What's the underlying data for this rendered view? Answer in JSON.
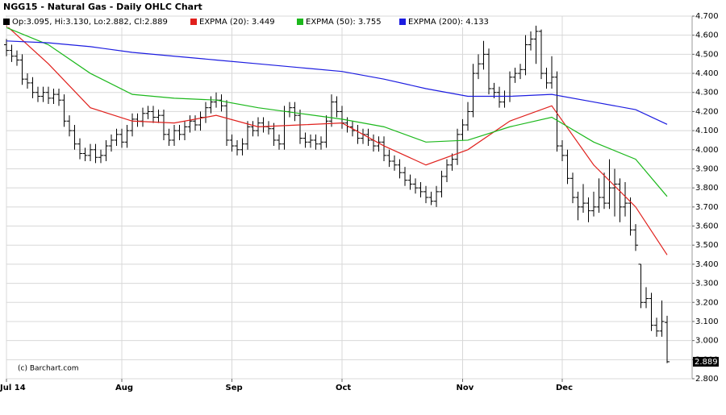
{
  "chart_data": {
    "type": "ohlc",
    "title": "NGG15 - Natural Gas - Daily OHLC Chart",
    "ohlc_label": "Op:3.095, Hi:3.130, Lo:2.882, Cl:2.889",
    "ohlc_color": "#000000",
    "source": "(c) Barchart.com",
    "categories": [
      "Jul 14",
      null,
      null,
      null,
      null,
      null,
      null,
      null,
      null,
      null,
      null,
      null,
      null,
      null,
      null,
      null,
      null,
      null,
      null,
      null,
      null,
      null,
      "Aug",
      null,
      null,
      null,
      null,
      null,
      null,
      null,
      null,
      null,
      null,
      null,
      null,
      null,
      null,
      null,
      null,
      null,
      null,
      null,
      null,
      "Sep",
      null,
      null,
      null,
      null,
      null,
      null,
      null,
      null,
      null,
      null,
      null,
      null,
      null,
      null,
      null,
      null,
      null,
      null,
      null,
      null,
      "Oct",
      null,
      null,
      null,
      null,
      null,
      null,
      null,
      null,
      null,
      null,
      null,
      null,
      null,
      null,
      null,
      null,
      null,
      null,
      null,
      null,
      null,
      null,
      "Nov",
      null,
      null,
      null,
      null,
      null,
      null,
      null,
      null,
      null,
      null,
      null,
      null,
      null,
      null,
      null,
      null,
      null,
      null,
      "Dec",
      null,
      null,
      null,
      null,
      null,
      null,
      null,
      null,
      null,
      null,
      null,
      null,
      null,
      null,
      null,
      null,
      null,
      null,
      null,
      null
    ],
    "open": [
      4.55,
      4.52,
      4.49,
      4.47,
      4.37,
      4.35,
      4.3,
      4.28,
      4.3,
      4.27,
      4.29,
      4.26,
      4.15,
      4.1,
      4.03,
      3.98,
      3.97,
      4.0,
      3.96,
      3.97,
      4.02,
      4.05,
      4.08,
      4.04,
      4.1,
      4.16,
      4.15,
      4.19,
      4.2,
      4.17,
      4.18,
      4.08,
      4.05,
      4.1,
      4.08,
      4.12,
      4.15,
      4.13,
      4.17,
      4.22,
      4.25,
      4.26,
      4.23,
      4.05,
      4.02,
      4.0,
      4.03,
      4.12,
      4.1,
      4.14,
      4.12,
      4.11,
      4.05,
      4.03,
      4.2,
      4.22,
      4.18,
      4.06,
      4.04,
      4.05,
      4.03,
      4.04,
      4.15,
      4.25,
      4.2,
      4.14,
      4.12,
      4.1,
      4.06,
      4.08,
      4.05,
      4.02,
      4.04,
      3.97,
      3.94,
      3.92,
      3.88,
      3.84,
      3.82,
      3.8,
      3.78,
      3.75,
      3.73,
      3.78,
      3.86,
      3.92,
      3.95,
      4.08,
      4.13,
      4.2,
      4.4,
      4.45,
      4.5,
      4.32,
      4.3,
      4.25,
      4.28,
      4.38,
      4.4,
      4.42,
      4.55,
      4.58,
      4.62,
      4.4,
      4.35,
      4.38,
      4.02,
      3.97,
      3.85,
      3.75,
      3.7,
      3.72,
      3.68,
      3.7,
      3.75,
      3.72,
      3.8,
      3.82,
      3.7,
      3.72,
      3.58,
      3.4,
      3.2,
      3.22,
      3.08,
      3.05,
      3.095
    ],
    "high": [
      4.58,
      4.55,
      4.52,
      4.5,
      4.4,
      4.38,
      4.33,
      4.33,
      4.33,
      4.32,
      4.32,
      4.29,
      4.18,
      4.13,
      4.06,
      4.01,
      4.03,
      4.03,
      4.0,
      4.05,
      4.08,
      4.11,
      4.11,
      4.13,
      4.19,
      4.19,
      4.22,
      4.23,
      4.23,
      4.21,
      4.21,
      4.11,
      4.13,
      4.13,
      4.15,
      4.18,
      4.18,
      4.2,
      4.25,
      4.28,
      4.3,
      4.29,
      4.26,
      4.08,
      4.05,
      4.06,
      4.15,
      4.15,
      4.17,
      4.17,
      4.15,
      4.14,
      4.08,
      4.23,
      4.25,
      4.25,
      4.21,
      4.09,
      4.08,
      4.08,
      4.07,
      4.18,
      4.29,
      4.28,
      4.23,
      4.17,
      4.15,
      4.13,
      4.11,
      4.11,
      4.08,
      4.07,
      4.07,
      4.0,
      3.97,
      3.95,
      3.91,
      3.87,
      3.85,
      3.83,
      3.81,
      3.78,
      3.81,
      3.89,
      3.95,
      3.98,
      4.11,
      4.16,
      4.25,
      4.45,
      4.5,
      4.57,
      4.53,
      4.35,
      4.33,
      4.31,
      4.41,
      4.43,
      4.45,
      4.6,
      4.62,
      4.65,
      4.63,
      4.43,
      4.49,
      4.41,
      4.05,
      4.0,
      3.88,
      3.78,
      3.82,
      3.75,
      3.78,
      3.85,
      3.88,
      3.95,
      3.9,
      3.85,
      3.83,
      3.75,
      3.61,
      3.4,
      3.28,
      3.25,
      3.12,
      3.21,
      3.13
    ],
    "low": [
      4.49,
      4.46,
      4.44,
      4.34,
      4.32,
      4.27,
      4.25,
      4.25,
      4.24,
      4.24,
      4.23,
      4.12,
      4.07,
      4.0,
      3.95,
      3.94,
      3.94,
      3.93,
      3.93,
      3.94,
      3.99,
      4.02,
      4.01,
      4.01,
      4.07,
      4.12,
      4.12,
      4.16,
      4.14,
      4.14,
      4.05,
      4.02,
      4.02,
      4.05,
      4.05,
      4.09,
      4.1,
      4.1,
      4.14,
      4.19,
      4.22,
      4.2,
      4.02,
      3.99,
      3.97,
      3.97,
      4.0,
      4.07,
      4.07,
      4.09,
      4.08,
      4.02,
      4.0,
      4.0,
      4.17,
      4.15,
      4.03,
      4.01,
      4.01,
      4.0,
      4.0,
      4.01,
      4.12,
      4.17,
      4.11,
      4.09,
      4.07,
      4.03,
      4.03,
      4.02,
      3.99,
      3.99,
      3.94,
      3.91,
      3.89,
      3.85,
      3.81,
      3.79,
      3.77,
      3.75,
      3.72,
      3.71,
      3.7,
      3.75,
      3.83,
      3.89,
      3.92,
      4.05,
      4.1,
      4.17,
      4.37,
      4.42,
      4.29,
      4.27,
      4.22,
      4.22,
      4.25,
      4.35,
      4.37,
      4.39,
      4.52,
      4.45,
      4.37,
      4.32,
      4.32,
      3.99,
      3.94,
      3.82,
      3.72,
      3.63,
      3.67,
      3.62,
      3.65,
      3.67,
      3.69,
      3.69,
      3.65,
      3.62,
      3.65,
      3.55,
      3.47,
      3.17,
      3.17,
      3.05,
      3.02,
      3.02,
      2.882
    ],
    "close": [
      4.52,
      4.49,
      4.47,
      4.37,
      4.35,
      4.3,
      4.28,
      4.3,
      4.27,
      4.29,
      4.26,
      4.15,
      4.1,
      4.03,
      3.98,
      3.97,
      4.0,
      3.96,
      3.97,
      4.02,
      4.05,
      4.08,
      4.04,
      4.1,
      4.16,
      4.15,
      4.19,
      4.2,
      4.17,
      4.18,
      4.08,
      4.05,
      4.1,
      4.08,
      4.12,
      4.15,
      4.13,
      4.17,
      4.22,
      4.25,
      4.26,
      4.23,
      4.05,
      4.02,
      4.0,
      4.03,
      4.12,
      4.1,
      4.14,
      4.12,
      4.11,
      4.05,
      4.03,
      4.2,
      4.22,
      4.18,
      4.06,
      4.04,
      4.05,
      4.03,
      4.04,
      4.15,
      4.25,
      4.2,
      4.14,
      4.12,
      4.1,
      4.06,
      4.08,
      4.05,
      4.02,
      4.04,
      3.97,
      3.94,
      3.92,
      3.88,
      3.84,
      3.82,
      3.8,
      3.78,
      3.75,
      3.73,
      3.78,
      3.86,
      3.92,
      3.95,
      4.08,
      4.13,
      4.2,
      4.4,
      4.45,
      4.5,
      4.32,
      4.3,
      4.25,
      4.28,
      4.38,
      4.4,
      4.42,
      4.55,
      4.58,
      4.62,
      4.4,
      4.35,
      4.38,
      4.02,
      3.97,
      3.85,
      3.75,
      3.7,
      3.72,
      3.68,
      3.7,
      3.75,
      3.72,
      3.8,
      3.82,
      3.7,
      3.72,
      3.58,
      3.5,
      3.2,
      3.22,
      3.08,
      3.05,
      3.1,
      2.889
    ],
    "series": [
      {
        "name": "EXPMA (20): 3.449",
        "color": "#e0201c",
        "x": [
          0,
          8,
          16,
          24,
          32,
          40,
          48,
          56,
          64,
          72,
          80,
          88,
          96,
          104,
          112,
          120,
          126
        ],
        "values": [
          4.65,
          4.45,
          4.22,
          4.15,
          4.14,
          4.18,
          4.12,
          4.13,
          4.14,
          4.02,
          3.92,
          4.0,
          4.15,
          4.23,
          3.92,
          3.7,
          3.449
        ]
      },
      {
        "name": "EXPMA (50): 3.755",
        "color": "#1cb81c",
        "x": [
          0,
          8,
          16,
          24,
          32,
          40,
          48,
          56,
          64,
          72,
          80,
          88,
          96,
          104,
          112,
          120,
          126
        ],
        "values": [
          4.64,
          4.55,
          4.4,
          4.29,
          4.27,
          4.26,
          4.22,
          4.19,
          4.16,
          4.12,
          4.04,
          4.05,
          4.12,
          4.17,
          4.04,
          3.95,
          3.755
        ]
      },
      {
        "name": "EXPMA (200): 4.133",
        "color": "#1c1ce0",
        "x": [
          0,
          8,
          16,
          24,
          32,
          40,
          48,
          56,
          64,
          72,
          80,
          88,
          96,
          104,
          112,
          120,
          126
        ],
        "values": [
          4.57,
          4.56,
          4.54,
          4.51,
          4.49,
          4.47,
          4.45,
          4.43,
          4.41,
          4.37,
          4.32,
          4.28,
          4.28,
          4.29,
          4.25,
          4.21,
          4.133
        ]
      }
    ],
    "ylim": [
      2.8,
      4.7
    ],
    "yticks": [
      {
        "value": 2.8,
        "label": "2.800"
      },
      {
        "value": 2.9,
        "label": "2.900"
      },
      {
        "value": 3.0,
        "label": "3.000"
      },
      {
        "value": 3.1,
        "label": "3.100"
      },
      {
        "value": 3.2,
        "label": "3.200"
      },
      {
        "value": 3.3,
        "label": "3.300"
      },
      {
        "value": 3.4,
        "label": "3.400"
      },
      {
        "value": 3.5,
        "label": "3.500"
      },
      {
        "value": 3.6,
        "label": "3.600"
      },
      {
        "value": 3.7,
        "label": "3.700"
      },
      {
        "value": 3.8,
        "label": "3.800"
      },
      {
        "value": 3.9,
        "label": "3.900"
      },
      {
        "value": 4.0,
        "label": "4.000"
      },
      {
        "value": 4.1,
        "label": "4.100"
      },
      {
        "value": 4.2,
        "label": "4.200"
      },
      {
        "value": 4.3,
        "label": "4.300"
      },
      {
        "value": 4.4,
        "label": "4.400"
      },
      {
        "value": 4.5,
        "label": "4.500"
      },
      {
        "value": 4.6,
        "label": "4.600"
      },
      {
        "value": 4.7,
        "label": "4.700"
      }
    ],
    "grid": true
  }
}
